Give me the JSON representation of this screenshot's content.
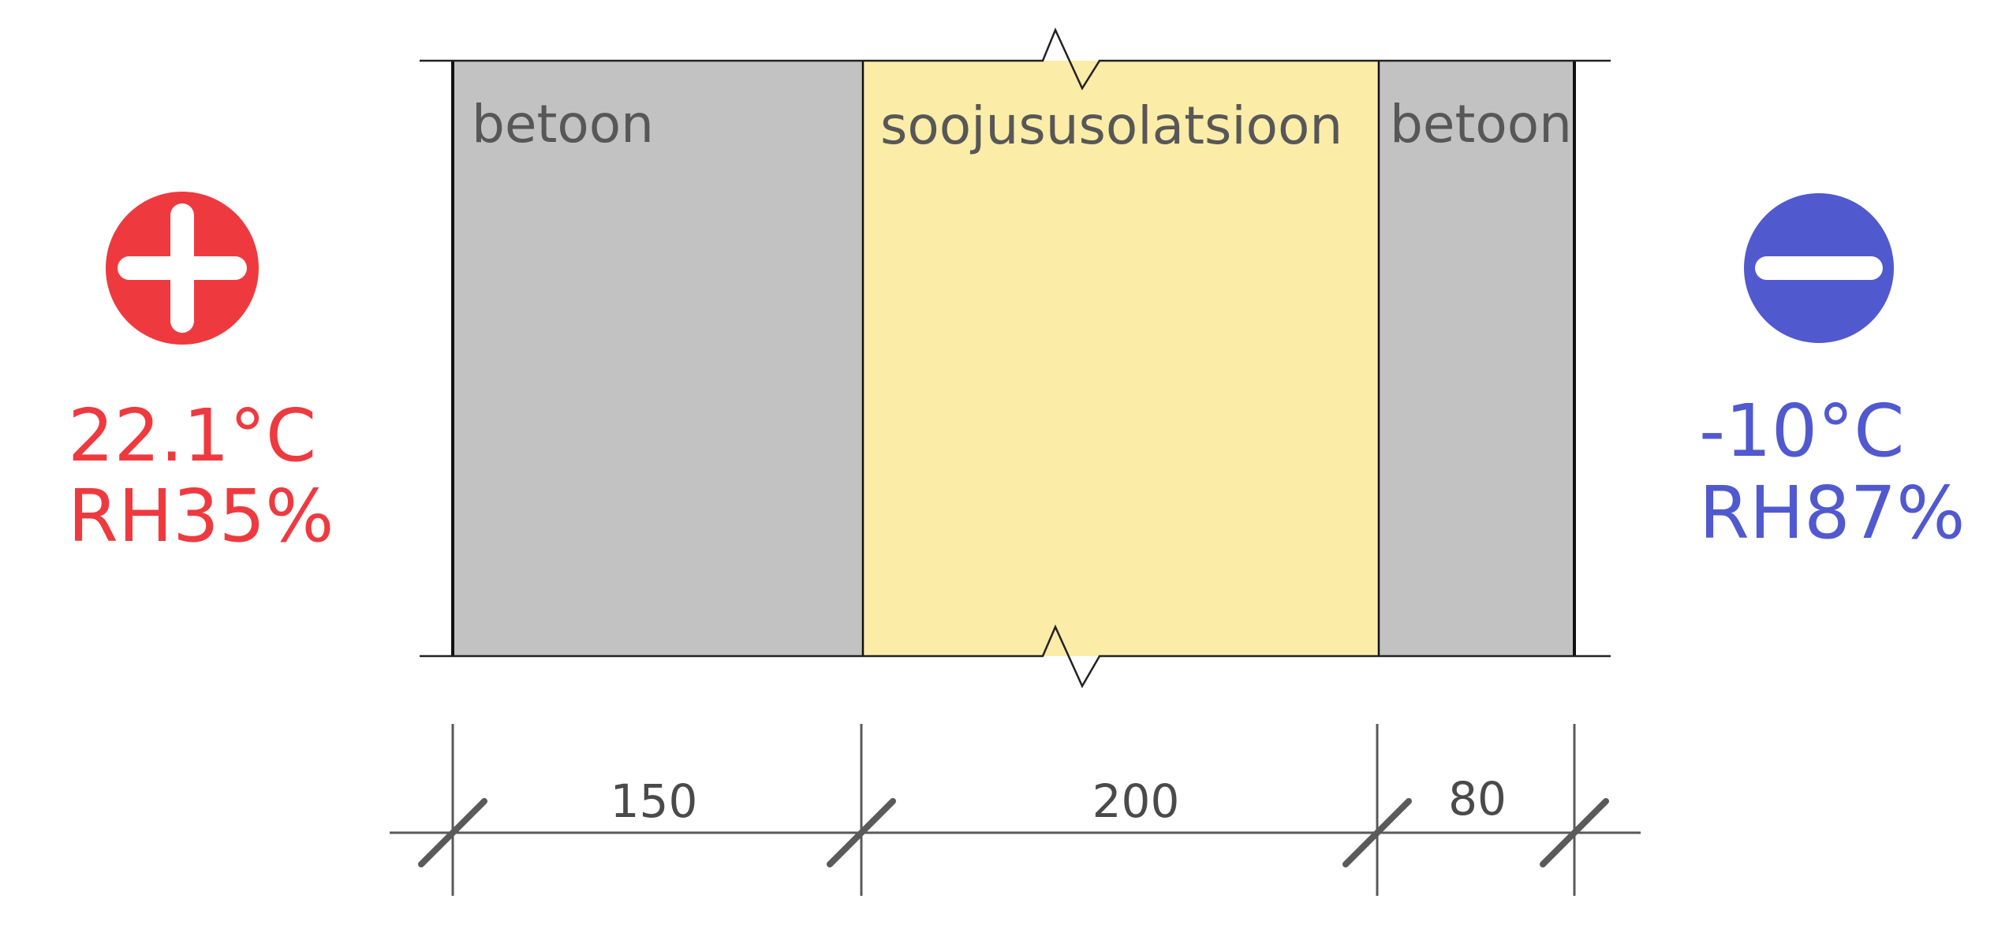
{
  "colors": {
    "concrete": "#c2c2c2",
    "insulation": "#fbeca8",
    "warm": "#ee3a3f",
    "cold": "#5159cf",
    "line": "#111111",
    "dimension": "#5a5a5a"
  },
  "layers": [
    {
      "label": "betoon",
      "material": "concrete"
    },
    {
      "label": "soojususolatsioon",
      "material": "insulation"
    },
    {
      "label": "betoon",
      "material": "concrete"
    }
  ],
  "dimensions": {
    "unit": "",
    "values": [
      "150",
      "200",
      "80"
    ]
  },
  "inside": {
    "icon": "plus-circle-icon",
    "temperature": "22.1°C",
    "humidity": "RH35%"
  },
  "outside": {
    "icon": "minus-circle-icon",
    "temperature": "-10°C",
    "humidity": "RH87%"
  }
}
